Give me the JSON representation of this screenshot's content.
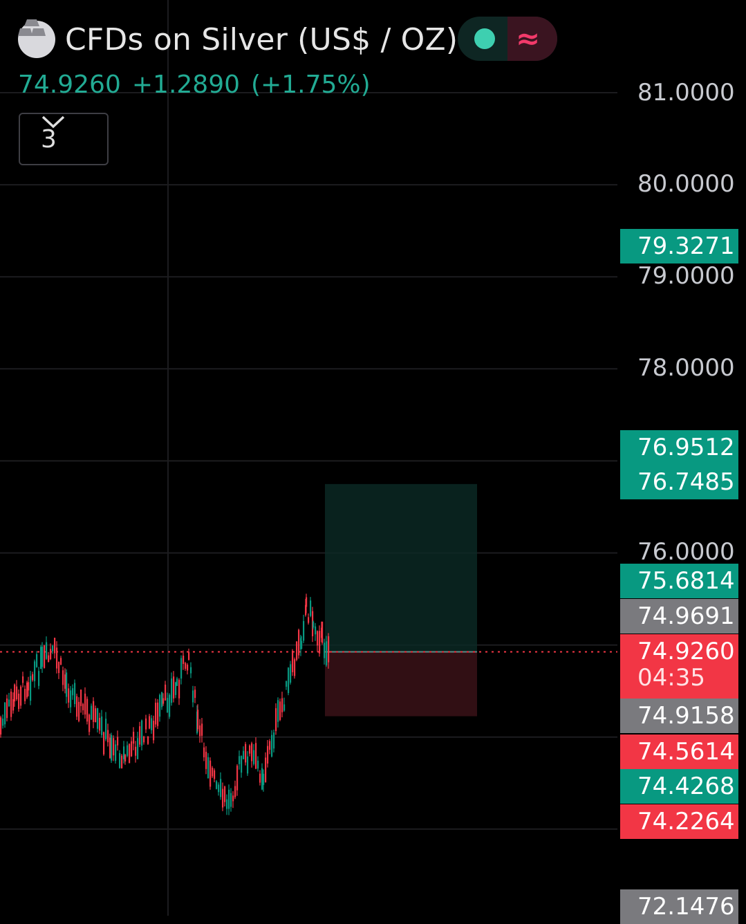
{
  "header": {
    "title": "CFDs on Silver (US$ / OZ)",
    "status_icon": "market-open-dot",
    "delay_icon": "approx-wave-icon"
  },
  "quote": {
    "last": "74.9260",
    "change": "+1.2890",
    "change_pct": "(+1.75%)"
  },
  "indicators_toggle": {
    "count": "3"
  },
  "price_axis": {
    "labels": [
      "81.0000",
      "80.0000",
      "79.0000",
      "78.0000",
      "76.0000"
    ]
  },
  "price_tags": [
    {
      "value": "79.3271",
      "color": "green"
    },
    {
      "value": "76.9512",
      "color": "green"
    },
    {
      "value": "76.7485",
      "color": "green"
    },
    {
      "value": "75.6814",
      "color": "green"
    },
    {
      "value": "74.9691",
      "color": "gray"
    },
    {
      "value": "74.9260",
      "color": "red",
      "countdown": "04:35"
    },
    {
      "value": "74.9158",
      "color": "gray"
    },
    {
      "value": "74.5614",
      "color": "red"
    },
    {
      "value": "74.4268",
      "color": "green"
    },
    {
      "value": "74.2264",
      "color": "red"
    },
    {
      "value": "72.1476",
      "color": "gray"
    }
  ],
  "position": {
    "profit_top": 76.7485,
    "entry": 74.926,
    "stop": 74.2264
  },
  "colors": {
    "up": "#089981",
    "down": "#f23645",
    "background": "#000000",
    "grid": "#1c1c1f"
  }
}
